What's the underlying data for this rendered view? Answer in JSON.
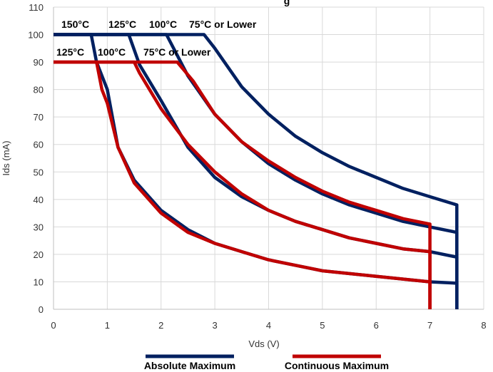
{
  "chart_data": {
    "type": "line",
    "title_fragment": "g",
    "xlabel": "Vds (V)",
    "ylabel": "Ids (mA)",
    "xlim": [
      0,
      8
    ],
    "ylim": [
      0,
      110
    ],
    "xticks": [
      0,
      1,
      2,
      3,
      4,
      5,
      6,
      7,
      8
    ],
    "yticks": [
      0,
      10,
      20,
      30,
      40,
      50,
      60,
      70,
      80,
      90,
      100,
      110
    ],
    "grid": true,
    "legend_position": "bottom",
    "legend": [
      {
        "label": "Absolute Maximum",
        "color": "#002060"
      },
      {
        "label": "Continuous Maximum",
        "color": "#c00000"
      }
    ],
    "colors": {
      "absolute": "#002060",
      "continuous": "#c00000"
    },
    "series": [
      {
        "group": "absolute",
        "name": "75°C or Lower",
        "x": [
          0,
          2.8,
          3.0,
          3.5,
          4.0,
          4.5,
          5.0,
          5.5,
          6.0,
          6.5,
          7.0,
          7.5,
          7.5
        ],
        "y": [
          100,
          100,
          95,
          81,
          71,
          63,
          57,
          52,
          48,
          44,
          41,
          38,
          0
        ]
      },
      {
        "group": "absolute",
        "name": "100°C",
        "x": [
          0,
          2.1,
          2.5,
          3.0,
          3.5,
          4.0,
          4.5,
          5.0,
          5.5,
          6.0,
          6.5,
          7.0,
          7.5,
          7.5
        ],
        "y": [
          100,
          100,
          85,
          71,
          61,
          53,
          47,
          42,
          38,
          35,
          32,
          30,
          28,
          0
        ]
      },
      {
        "group": "absolute",
        "name": "125°C",
        "x": [
          0,
          1.4,
          1.6,
          2.0,
          2.5,
          3.0,
          3.5,
          4.0,
          4.5,
          5.0,
          5.5,
          6.0,
          6.5,
          7.0,
          7.5,
          7.5
        ],
        "y": [
          100,
          100,
          89,
          76,
          59,
          48,
          41,
          36,
          32,
          29,
          26,
          24,
          22,
          21,
          19,
          0
        ]
      },
      {
        "group": "absolute",
        "name": "150°C",
        "x": [
          0,
          0.7,
          0.8,
          1.0,
          1.2,
          1.5,
          2.0,
          2.5,
          3.0,
          3.5,
          4.0,
          4.5,
          5.0,
          5.5,
          6.0,
          6.5,
          7.0,
          7.5,
          7.5
        ],
        "y": [
          100,
          100,
          90,
          80,
          59,
          47,
          36,
          29,
          24,
          21,
          18,
          16,
          14,
          13,
          12,
          11,
          10,
          9.5,
          0
        ]
      },
      {
        "group": "continuous",
        "name": "75°C or Lower",
        "x": [
          0,
          2.3,
          2.6,
          3.0,
          3.5,
          4.0,
          4.5,
          5.0,
          5.5,
          6.0,
          6.5,
          7.0,
          7.0
        ],
        "y": [
          90,
          90,
          83,
          71,
          61,
          54,
          48,
          43,
          39,
          36,
          33,
          31,
          0
        ]
      },
      {
        "group": "continuous",
        "name": "100°C",
        "x": [
          0,
          1.5,
          1.6,
          2.0,
          2.5,
          3.0,
          3.5,
          4.0,
          4.5,
          5.0,
          5.5,
          6.0,
          6.5,
          7.0,
          7.0
        ],
        "y": [
          90,
          90,
          86,
          73,
          60,
          50,
          42,
          36,
          32,
          29,
          26,
          24,
          22,
          21,
          0
        ]
      },
      {
        "group": "continuous",
        "name": "125°C",
        "x": [
          0,
          0.8,
          0.9,
          1.0,
          1.2,
          1.5,
          2.0,
          2.5,
          3.0,
          3.5,
          4.0,
          4.5,
          5.0,
          5.5,
          6.0,
          6.5,
          7.0,
          7.0
        ],
        "y": [
          90,
          90,
          80,
          75,
          59,
          46,
          35,
          28,
          24,
          21,
          18,
          16,
          14,
          13,
          12,
          11,
          10,
          0
        ]
      }
    ],
    "annotations": {
      "absolute": [
        "150°C",
        "125°C",
        "100°C",
        "75°C or Lower"
      ],
      "continuous": [
        "125°C",
        "100°C",
        "75°C or Lower"
      ]
    }
  }
}
